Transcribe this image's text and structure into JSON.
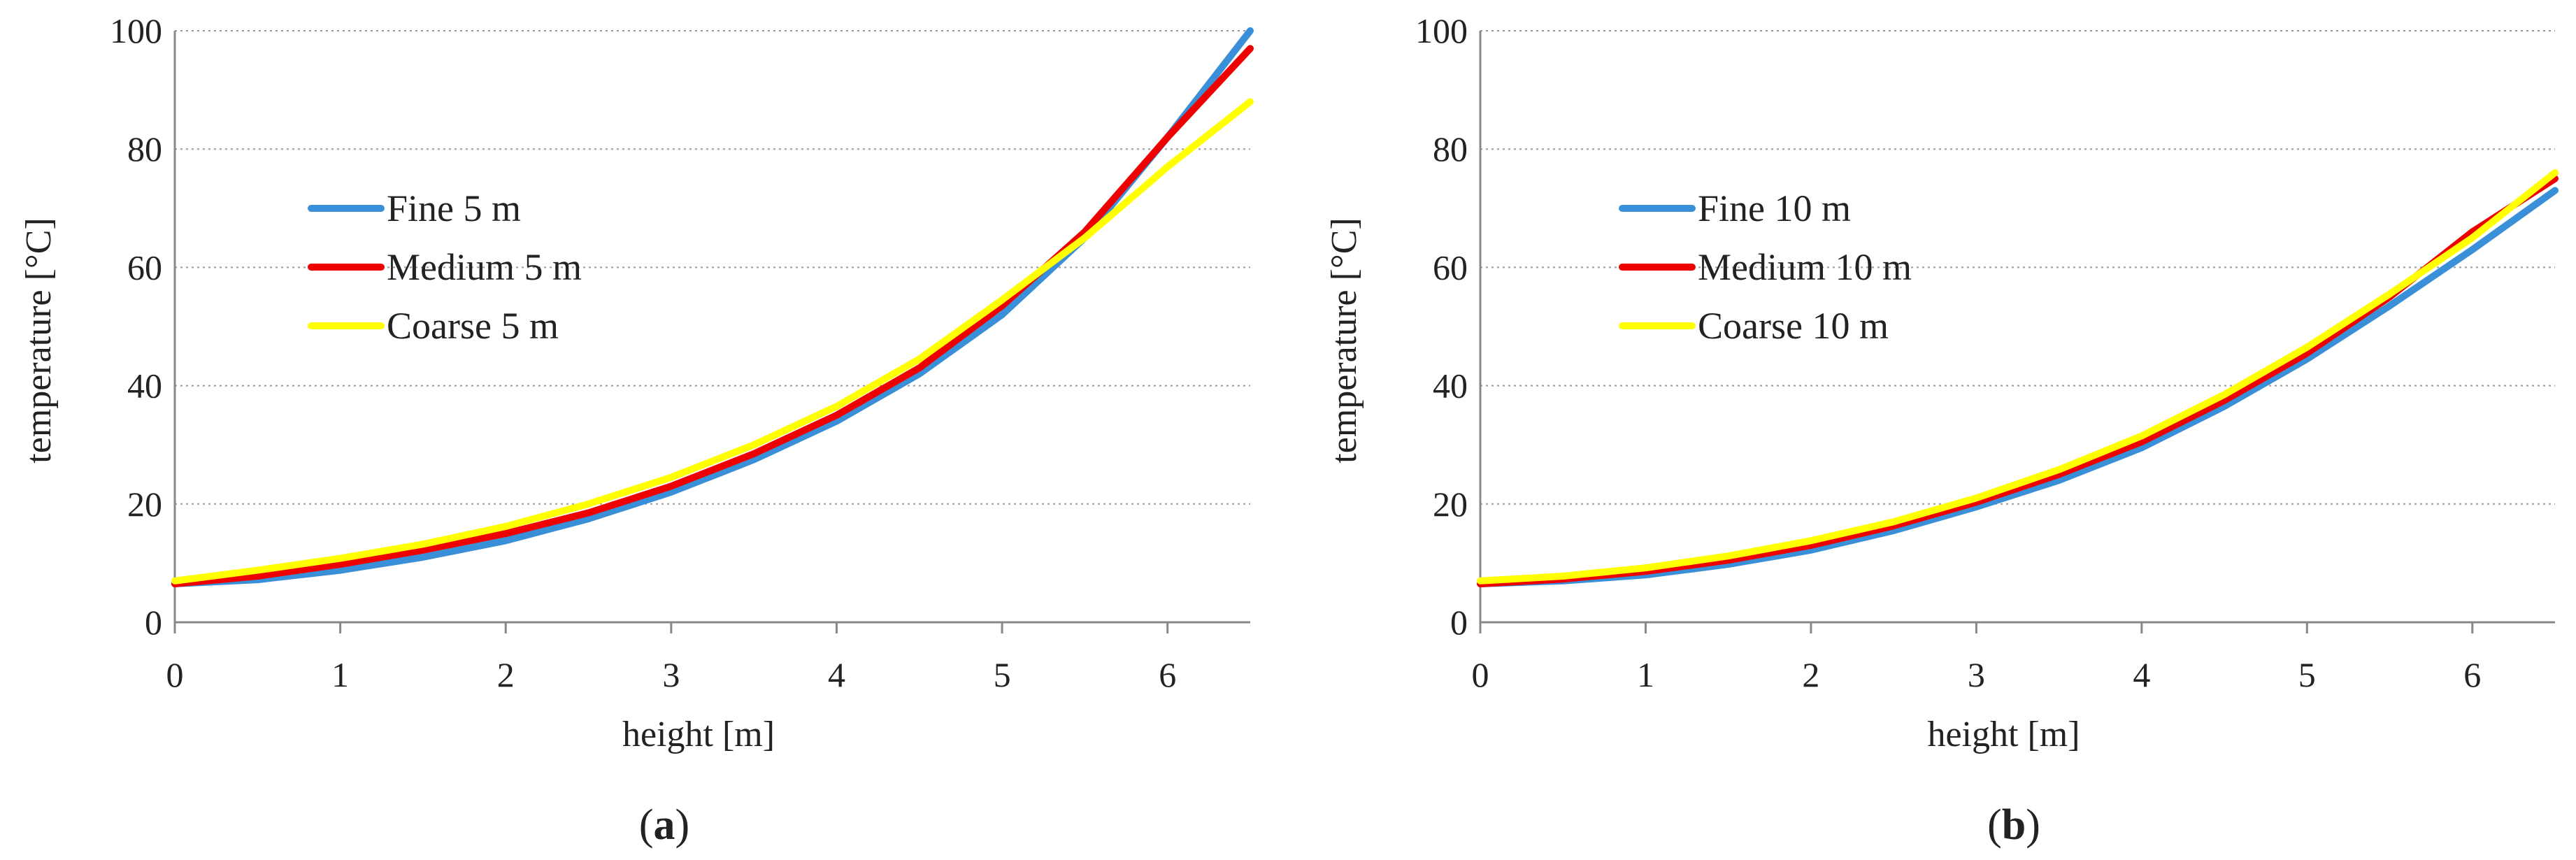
{
  "chart_data": [
    {
      "type": "line",
      "panel_label": "(a)",
      "panel_letter": "a",
      "xlabel": "height [m]",
      "ylabel": "temperature [°C]",
      "xlim": [
        0,
        6.5
      ],
      "ylim": [
        0,
        100
      ],
      "xticks": [
        0,
        1,
        2,
        3,
        4,
        5,
        6
      ],
      "yticks": [
        0,
        20,
        40,
        60,
        80,
        100
      ],
      "grid": "horizontal dotted",
      "legend": "middle-left",
      "series": [
        {
          "name": "Fine 5 m",
          "color": "#3a8fd9",
          "x": [
            0,
            0.5,
            1,
            1.5,
            2,
            2.5,
            3,
            3.5,
            4,
            4.5,
            5,
            5.5,
            6,
            6.5
          ],
          "y": [
            6.5,
            7.2,
            8.8,
            11,
            13.8,
            17.5,
            22,
            27.5,
            34,
            42,
            52,
            65,
            82,
            100
          ]
        },
        {
          "name": "Medium 5 m",
          "color": "#ee0000",
          "x": [
            0,
            0.5,
            1,
            1.5,
            2,
            2.5,
            3,
            3.5,
            4,
            4.5,
            5,
            5.5,
            6,
            6.5
          ],
          "y": [
            6.5,
            7.8,
            9.8,
            12.2,
            15,
            18.5,
            23,
            28.5,
            35,
            43,
            53.5,
            66,
            82,
            97
          ]
        },
        {
          "name": "Coarse 5 m",
          "color": "#ffff00",
          "x": [
            0,
            0.5,
            1,
            1.5,
            2,
            2.5,
            3,
            3.5,
            4,
            4.5,
            5,
            5.5,
            6,
            6.5
          ],
          "y": [
            7,
            8.8,
            10.8,
            13.2,
            16.2,
            20,
            24.5,
            30,
            36.5,
            44.5,
            54.5,
            65,
            77,
            88
          ]
        }
      ]
    },
    {
      "type": "line",
      "panel_label": "(b)",
      "panel_letter": "b",
      "xlabel": "height [m]",
      "ylabel": "temperature [°C]",
      "xlim": [
        0,
        6.5
      ],
      "ylim": [
        0,
        100
      ],
      "xticks": [
        0,
        1,
        2,
        3,
        4,
        5,
        6
      ],
      "yticks": [
        0,
        20,
        40,
        60,
        80,
        100
      ],
      "grid": "horizontal dotted",
      "legend": "top-left",
      "series": [
        {
          "name": "Fine 10 m",
          "color": "#3a8fd9",
          "x": [
            0,
            0.5,
            1,
            1.5,
            2,
            2.5,
            3,
            3.5,
            4,
            4.5,
            5,
            5.5,
            6,
            6.5
          ],
          "y": [
            6.5,
            7,
            8,
            9.8,
            12.2,
            15.5,
            19.5,
            24,
            29.5,
            36.5,
            44.5,
            53.5,
            63,
            73
          ]
        },
        {
          "name": "Medium 10 m",
          "color": "#ee0000",
          "x": [
            0,
            0.5,
            1,
            1.5,
            2,
            2.5,
            3,
            3.5,
            4,
            4.5,
            5,
            5.5,
            6,
            6.5
          ],
          "y": [
            6.5,
            7.3,
            8.6,
            10.5,
            13,
            16.3,
            20.3,
            25,
            30.5,
            37.5,
            45.5,
            55,
            66,
            75
          ]
        },
        {
          "name": "Coarse 10 m",
          "color": "#ffff00",
          "x": [
            0,
            0.5,
            1,
            1.5,
            2,
            2.5,
            3,
            3.5,
            4,
            4.5,
            5,
            5.5,
            6,
            6.5
          ],
          "y": [
            7,
            7.8,
            9.2,
            11.2,
            13.8,
            17,
            21,
            25.8,
            31.5,
            38.5,
            46.5,
            55.5,
            65,
            76
          ]
        }
      ]
    }
  ]
}
